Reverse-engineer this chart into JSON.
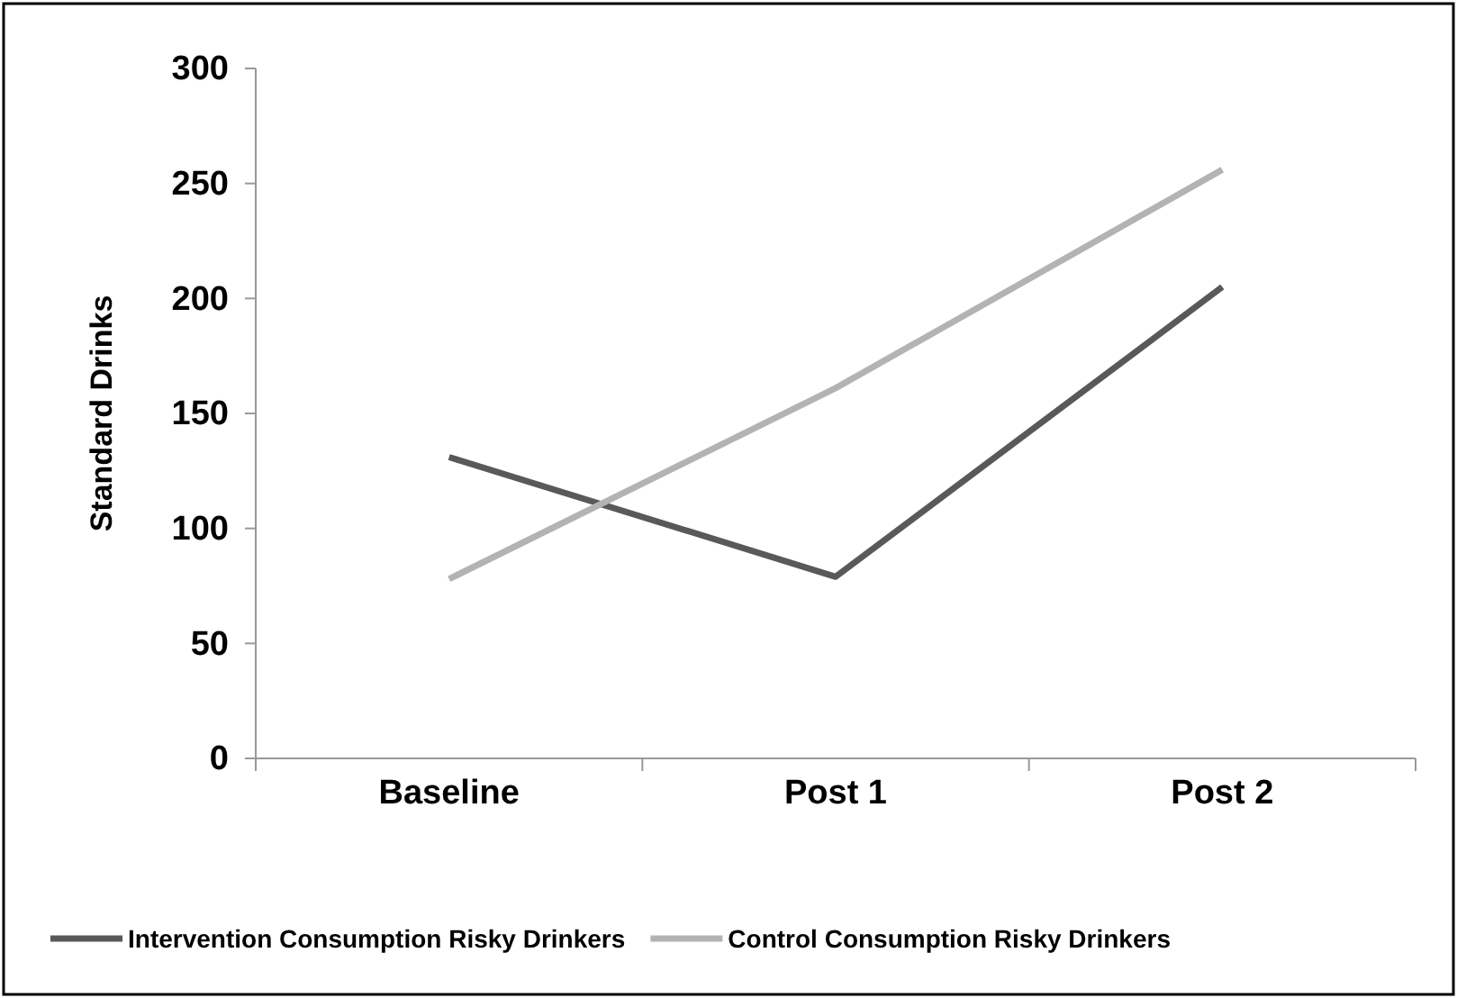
{
  "chart_data": {
    "type": "line",
    "ylabel": "Standard Drinks",
    "categories": [
      "Baseline",
      "Post 1",
      "Post 2"
    ],
    "series": [
      {
        "name": "Intervention Consumption Risky Drinkers",
        "color": "#595959",
        "values": [
          131,
          79,
          205
        ]
      },
      {
        "name": "Control Consumption Risky Drinkers",
        "color": "#b3b3b3",
        "values": [
          78,
          161,
          256
        ]
      }
    ],
    "ylim": [
      0,
      300
    ],
    "yticks": [
      0,
      50,
      100,
      150,
      200,
      250,
      300
    ],
    "grid": false,
    "legend": "bottom",
    "marker": "none",
    "line_style": "solid"
  }
}
